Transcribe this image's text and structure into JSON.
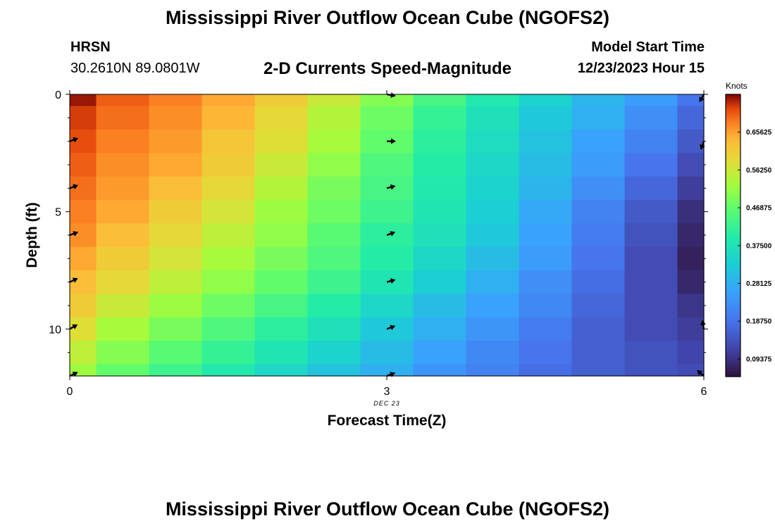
{
  "header": {
    "title": "Mississippi River Outflow Ocean Cube (NGOFS2)",
    "station_name": "HRSN",
    "station_coords": "30.2610N  89.0801W",
    "plot_title": "2-D Currents Speed-Magnitude",
    "model_start_label": "Model Start Time",
    "model_start_value": "12/23/2023 Hour 15"
  },
  "footer": {
    "title": "Mississippi River Outflow Ocean Cube (NGOFS2)"
  },
  "chart_data": {
    "type": "heatmap",
    "title": "2-D Currents Speed-Magnitude",
    "xlabel": "Forecast Time(Z)",
    "ylabel": "Depth (ft)",
    "x_ticks": [
      0,
      3,
      6
    ],
    "y_ticks": [
      0,
      5,
      10
    ],
    "x_date_label": "DEC 23",
    "xlim": [
      0,
      6
    ],
    "ylim": [
      0,
      12
    ],
    "colorbar": {
      "label": "Knots",
      "ticks": [
        "0.65625",
        "0.56250",
        "0.46875",
        "0.37500",
        "0.28125",
        "0.18750",
        "0.09375"
      ],
      "range": [
        0.05,
        0.75
      ]
    },
    "x_edges": [
      0,
      0.25,
      0.75,
      1.25,
      1.75,
      2.25,
      2.75,
      3.25,
      3.75,
      4.25,
      4.75,
      5.25,
      5.75,
      6
    ],
    "y_edges": [
      0,
      0.5,
      1.5,
      2.5,
      3.5,
      4.5,
      5.5,
      6.5,
      7.5,
      8.5,
      9.5,
      10.5,
      11.5,
      12
    ],
    "speeds": [
      [
        0.74,
        0.7,
        0.68,
        0.65,
        0.61,
        0.56,
        0.5,
        0.44,
        0.39,
        0.34,
        0.29,
        0.25,
        0.19
      ],
      [
        0.72,
        0.69,
        0.67,
        0.64,
        0.59,
        0.54,
        0.48,
        0.42,
        0.37,
        0.32,
        0.28,
        0.23,
        0.17
      ],
      [
        0.71,
        0.68,
        0.66,
        0.62,
        0.58,
        0.53,
        0.47,
        0.41,
        0.36,
        0.31,
        0.26,
        0.21,
        0.15
      ],
      [
        0.7,
        0.67,
        0.65,
        0.61,
        0.56,
        0.51,
        0.45,
        0.4,
        0.35,
        0.3,
        0.25,
        0.19,
        0.13
      ],
      [
        0.69,
        0.66,
        0.63,
        0.59,
        0.54,
        0.49,
        0.44,
        0.39,
        0.34,
        0.29,
        0.23,
        0.17,
        0.11
      ],
      [
        0.68,
        0.65,
        0.61,
        0.57,
        0.52,
        0.48,
        0.43,
        0.38,
        0.33,
        0.27,
        0.21,
        0.15,
        0.09
      ],
      [
        0.67,
        0.63,
        0.59,
        0.55,
        0.51,
        0.46,
        0.41,
        0.37,
        0.32,
        0.26,
        0.2,
        0.14,
        0.08
      ],
      [
        0.65,
        0.61,
        0.57,
        0.53,
        0.49,
        0.45,
        0.4,
        0.35,
        0.3,
        0.25,
        0.19,
        0.13,
        0.07
      ],
      [
        0.63,
        0.59,
        0.55,
        0.51,
        0.47,
        0.43,
        0.38,
        0.33,
        0.28,
        0.23,
        0.18,
        0.13,
        0.08
      ],
      [
        0.61,
        0.56,
        0.52,
        0.48,
        0.44,
        0.4,
        0.35,
        0.3,
        0.26,
        0.22,
        0.17,
        0.13,
        0.1
      ],
      [
        0.58,
        0.53,
        0.49,
        0.45,
        0.41,
        0.37,
        0.32,
        0.28,
        0.24,
        0.2,
        0.16,
        0.13,
        0.11
      ],
      [
        0.55,
        0.5,
        0.46,
        0.42,
        0.38,
        0.34,
        0.3,
        0.26,
        0.22,
        0.19,
        0.16,
        0.14,
        0.12
      ],
      [
        0.52,
        0.47,
        0.43,
        0.39,
        0.35,
        0.31,
        0.28,
        0.24,
        0.21,
        0.18,
        0.16,
        0.14,
        0.13
      ]
    ],
    "vectors": [
      {
        "time": 0,
        "depth": 2,
        "direction_deg": 20
      },
      {
        "time": 0,
        "depth": 4,
        "direction_deg": 20
      },
      {
        "time": 0,
        "depth": 6,
        "direction_deg": 20
      },
      {
        "time": 0,
        "depth": 8,
        "direction_deg": 25
      },
      {
        "time": 0,
        "depth": 10,
        "direction_deg": 30
      },
      {
        "time": 0,
        "depth": 12,
        "direction_deg": 25
      },
      {
        "time": 3,
        "depth": 0,
        "direction_deg": -10
      },
      {
        "time": 3,
        "depth": 2,
        "direction_deg": 0
      },
      {
        "time": 3,
        "depth": 4,
        "direction_deg": 15
      },
      {
        "time": 3,
        "depth": 6,
        "direction_deg": 20
      },
      {
        "time": 3,
        "depth": 8,
        "direction_deg": 15
      },
      {
        "time": 3,
        "depth": 10,
        "direction_deg": 20
      },
      {
        "time": 3,
        "depth": 12,
        "direction_deg": 20
      },
      {
        "time": 6,
        "depth": 0,
        "direction_deg": -120
      },
      {
        "time": 6,
        "depth": 2,
        "direction_deg": -110
      },
      {
        "time": 6,
        "depth": 10,
        "direction_deg": 100
      },
      {
        "time": 6,
        "depth": 12,
        "direction_deg": 140
      }
    ]
  }
}
